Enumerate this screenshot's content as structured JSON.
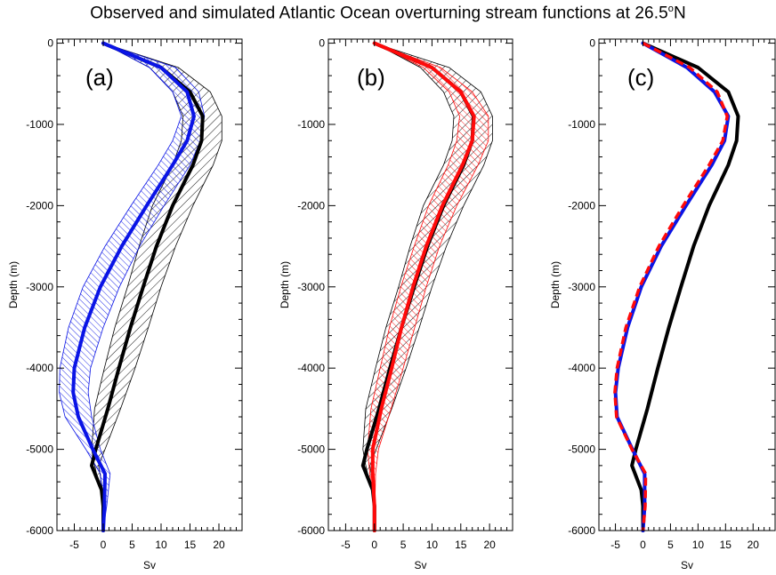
{
  "title": {
    "main": "Observed and simulated Atlantic Ocean overturning stream functions at 26.5",
    "degree": "o",
    "suffix": "N"
  },
  "colors": {
    "observed": "#000000",
    "model_a": "#0a14e6",
    "model_b": "#ff0a0a",
    "axis": "#000000"
  },
  "chart_data": [
    {
      "type": "line",
      "panel": "(a)",
      "xlabel": "Sv",
      "ylabel": "Depth (m)",
      "xlim": [
        -8,
        24
      ],
      "ylim": [
        -6000,
        50
      ],
      "xticks": [
        -5,
        0,
        5,
        10,
        15,
        20
      ],
      "yticks": [
        0,
        -1000,
        -2000,
        -3000,
        -4000,
        -5000,
        -6000
      ],
      "xticklabels": [
        "-5",
        "0",
        "5",
        "10",
        "15",
        "20"
      ],
      "yticklabels": [
        "0",
        "-1000",
        "-2000",
        "-3000",
        "-4000",
        "-5000",
        "-6000"
      ],
      "grid": false,
      "series": [
        {
          "color": "black",
          "style": "solid",
          "bold": true,
          "depth": [
            0,
            -300,
            -600,
            -900,
            -1200,
            -1500,
            -2000,
            -2500,
            -3000,
            -3500,
            -4000,
            -4500,
            -5000,
            -5200,
            -5500,
            -5700,
            -6000
          ],
          "values": [
            0,
            10,
            15,
            17.2,
            17.0,
            15.5,
            12.0,
            9.2,
            6.9,
            4.7,
            2.7,
            0.8,
            -1.3,
            -2.0,
            -0.3,
            0,
            0
          ],
          "band_lower": [
            0,
            8,
            12,
            13.8,
            13.5,
            12,
            8.5,
            6.2,
            4.2,
            2.0,
            0.2,
            -1.5,
            -2.0,
            -1.5,
            -0.5,
            0,
            0
          ],
          "band_upper": [
            0,
            13,
            18.5,
            20.5,
            20.5,
            19,
            15.5,
            12.5,
            10,
            7.8,
            5.5,
            3.0,
            0.3,
            -0.8,
            -0.1,
            0,
            0
          ]
        },
        {
          "color": "blue",
          "style": "solid",
          "bold": true,
          "depth": [
            0,
            -300,
            -600,
            -900,
            -1200,
            -1500,
            -2000,
            -2500,
            -3000,
            -3500,
            -4000,
            -4300,
            -4600,
            -5000,
            -5300,
            -5700,
            -6000
          ],
          "values": [
            0,
            10,
            14.5,
            15.7,
            14.5,
            12.0,
            7.5,
            3.2,
            -0.5,
            -3.2,
            -5.0,
            -5.2,
            -4.3,
            -1.8,
            0.3,
            0.2,
            0
          ],
          "band_lower": [
            0,
            8,
            12,
            13.5,
            12,
            9.5,
            4.8,
            0.3,
            -3.5,
            -6.0,
            -7.5,
            -7.6,
            -6.6,
            -3.0,
            -0.5,
            0,
            0
          ],
          "band_upper": [
            0,
            12.5,
            16.5,
            17.5,
            16.8,
            15.0,
            10.5,
            6.3,
            2.8,
            0,
            -2.2,
            -2.6,
            -2.0,
            -0.5,
            1.2,
            0.6,
            0
          ]
        }
      ]
    },
    {
      "type": "line",
      "panel": "(b)",
      "xlabel": "Sv",
      "ylabel": "Depth (m)",
      "xlim": [
        -8,
        24
      ],
      "ylim": [
        -6000,
        50
      ],
      "xticks": [
        -5,
        0,
        5,
        10,
        15,
        20
      ],
      "yticks": [
        0,
        -1000,
        -2000,
        -3000,
        -4000,
        -5000,
        -6000
      ],
      "xticklabels": [
        "-5",
        "0",
        "5",
        "10",
        "15",
        "20"
      ],
      "yticklabels": [
        "0",
        "-1000",
        "-2000",
        "-3000",
        "-4000",
        "-5000",
        "-6000"
      ],
      "grid": false,
      "series": [
        {
          "color": "black",
          "style": "solid",
          "bold": true,
          "depth": [
            0,
            -300,
            -600,
            -900,
            -1200,
            -1500,
            -2000,
            -2500,
            -3000,
            -3500,
            -4000,
            -4500,
            -5000,
            -5200,
            -5500,
            -5700,
            -6000
          ],
          "values": [
            0,
            10,
            15,
            17.2,
            17.0,
            15.5,
            12.0,
            9.2,
            6.9,
            4.7,
            2.7,
            0.8,
            -1.3,
            -2.0,
            -0.3,
            0,
            0
          ],
          "band_lower": [
            0,
            8,
            12,
            13.8,
            13.5,
            12,
            8.5,
            6.2,
            4.2,
            2.0,
            0.2,
            -1.5,
            -2.0,
            -1.5,
            -0.5,
            0,
            0
          ],
          "band_upper": [
            0,
            13,
            18.5,
            20.5,
            20.5,
            19,
            15.5,
            12.5,
            10,
            7.8,
            5.5,
            3.0,
            0.3,
            -0.8,
            -0.1,
            0,
            0
          ]
        },
        {
          "color": "red",
          "style": "solid",
          "bold": true,
          "depth": [
            0,
            -300,
            -600,
            -900,
            -1200,
            -1500,
            -2000,
            -2500,
            -3000,
            -3500,
            -4000,
            -4500,
            -5000,
            -5300,
            -5700,
            -6000
          ],
          "values": [
            0,
            10,
            15,
            17.3,
            17.0,
            15.3,
            11.8,
            9.0,
            6.7,
            4.7,
            3.0,
            1.2,
            -0.3,
            -0.3,
            0,
            0
          ],
          "band_lower": [
            0,
            8.5,
            13,
            14.8,
            14.3,
            12.8,
            9.4,
            6.9,
            4.6,
            2.6,
            1.0,
            -0.6,
            -1.2,
            -0.8,
            -0.2,
            0
          ],
          "band_upper": [
            0,
            11.5,
            17.0,
            19.8,
            19.8,
            18.0,
            14.3,
            11.3,
            9.0,
            7.0,
            5.0,
            2.9,
            0.7,
            0.2,
            0.1,
            0
          ]
        }
      ]
    },
    {
      "type": "line",
      "panel": "(c)",
      "xlabel": "Sv",
      "ylabel": "Depth (m)",
      "xlim": [
        -8,
        24
      ],
      "ylim": [
        -6000,
        50
      ],
      "xticks": [
        -5,
        0,
        5,
        10,
        15,
        20
      ],
      "yticks": [
        0,
        -1000,
        -2000,
        -3000,
        -4000,
        -5000,
        -6000
      ],
      "xticklabels": [
        "-5",
        "0",
        "5",
        "10",
        "15",
        "20"
      ],
      "yticklabels": [
        "0",
        "-1000",
        "-2000",
        "-3000",
        "-4000",
        "-5000",
        "-6000"
      ],
      "grid": false,
      "series": [
        {
          "color": "black",
          "style": "solid",
          "bold": true,
          "depth": [
            0,
            -300,
            -600,
            -900,
            -1200,
            -1500,
            -2000,
            -2500,
            -3000,
            -3500,
            -4000,
            -4500,
            -5000,
            -5200,
            -5500,
            -5700,
            -6000
          ],
          "values": [
            0,
            10,
            15.5,
            17.3,
            17.0,
            15.5,
            12.0,
            9.2,
            6.9,
            4.7,
            2.7,
            0.8,
            -1.3,
            -2.0,
            -0.3,
            0,
            0
          ]
        },
        {
          "color": "blue",
          "style": "solid",
          "bold": true,
          "depth": [
            0,
            -300,
            -600,
            -900,
            -1200,
            -1500,
            -2000,
            -2500,
            -3000,
            -3500,
            -4000,
            -4300,
            -4600,
            -5000,
            -5300,
            -5700,
            -6000
          ],
          "values": [
            0,
            8,
            13.0,
            15.5,
            14.8,
            12.5,
            7.8,
            3.3,
            -0.3,
            -2.8,
            -4.5,
            -5.0,
            -4.7,
            -1.9,
            0.3,
            0.3,
            0
          ]
        },
        {
          "color": "red",
          "style": "dashed",
          "bold": true,
          "depth": [
            0,
            -300,
            -600,
            -900,
            -1200,
            -1500,
            -2000,
            -2500,
            -3000,
            -3500,
            -4000,
            -4300,
            -4600,
            -5000,
            -5300,
            -5700,
            -6000
          ],
          "values": [
            0,
            8.5,
            13.5,
            15.3,
            14.5,
            12.0,
            7.3,
            2.9,
            -0.6,
            -3.1,
            -4.7,
            -5.1,
            -4.8,
            -2.0,
            0.5,
            0.4,
            0
          ]
        }
      ]
    }
  ]
}
